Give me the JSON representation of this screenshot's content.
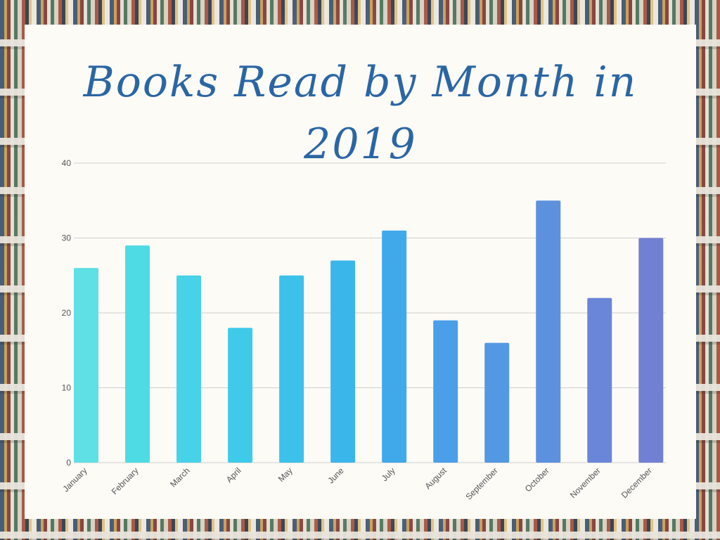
{
  "chart_data": {
    "type": "bar",
    "title": "Books Read by Month in 2019",
    "xlabel": "",
    "ylabel": "",
    "categories": [
      "January",
      "February",
      "March",
      "April",
      "May",
      "June",
      "July",
      "August",
      "September",
      "October",
      "November",
      "December"
    ],
    "values": [
      26,
      29,
      25,
      18,
      25,
      27,
      31,
      19,
      16,
      35,
      22,
      30
    ],
    "ylim": [
      0,
      40
    ],
    "yticks": [
      "0",
      "10",
      "20",
      "30",
      "40"
    ],
    "grid": true,
    "bar_colors": [
      "#5ee0e4",
      "#4fdbe4",
      "#47d2e8",
      "#40caea",
      "#3cc1ea",
      "#3bb6ea",
      "#40a9ea",
      "#4a9fe8",
      "#5398e2",
      "#5d91de",
      "#6a86d8",
      "#7280d4"
    ]
  }
}
